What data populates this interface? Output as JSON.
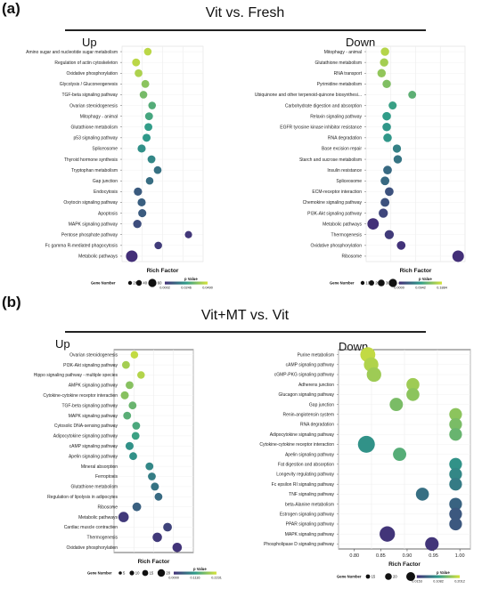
{
  "panel_a": {
    "letter": "(a)",
    "title": "Vit vs. Fresh",
    "up_label": "Up",
    "down_label": "Down"
  },
  "panel_b": {
    "letter": "(b)",
    "title": "Vit+MT vs. Vit",
    "up_label": "Up",
    "down_label": "Down"
  },
  "colors": {
    "low_p": "#d6e33a",
    "mid_p": "#2f9c8a",
    "high_p": "#432f78"
  },
  "chart_data": [
    {
      "type": "scatter",
      "panel": "(a) Up",
      "xlabel": "Rich Factor",
      "size_legend_title": "Gene Number",
      "size_legend_values": [
        20,
        40,
        60
      ],
      "color_legend_title": "p Value",
      "color_legend_ticks": [
        "0.0002",
        "0.0246",
        "0.0490"
      ],
      "xlim": [
        0.0,
        1.0
      ],
      "categories": [
        "Amino sugar and nucleotide sugar metabolism",
        "Regulation of actin cytoskeleton",
        "Oxidative phosphorylation",
        "Glycolysis / Gluconeogenesis",
        "TGF-beta signaling pathway",
        "Ovarian steroidogenesis",
        "Mitophagy - animal",
        "Glutathione metabolism",
        "p53 signaling pathway",
        "Spliceosome",
        "Thyroid hormone synthesis",
        "Tryptophan metabolism",
        "Gap junction",
        "Endocytosis",
        "Oxytocin signaling pathway",
        "Apoptosis",
        "MAPK signaling pathway",
        "Pentose phosphate pathway",
        "Fc gamma R-mediated phagocytosis",
        "Metabolic pathways"
      ],
      "x": [
        0.26,
        0.07,
        0.11,
        0.22,
        0.19,
        0.33,
        0.28,
        0.27,
        0.24,
        0.16,
        0.32,
        0.42,
        0.29,
        0.1,
        0.16,
        0.17,
        0.09,
        0.92,
        0.43,
        0.0
      ],
      "sizes": [
        8,
        10,
        9,
        10,
        8,
        8,
        10,
        10,
        11,
        12,
        10,
        9,
        8,
        13,
        12,
        12,
        14,
        6,
        8,
        60
      ],
      "pvalues": [
        0.045,
        0.045,
        0.043,
        0.038,
        0.035,
        0.03,
        0.028,
        0.025,
        0.024,
        0.022,
        0.02,
        0.015,
        0.014,
        0.01,
        0.011,
        0.01,
        0.007,
        0.002,
        0.003,
        0.0002
      ]
    },
    {
      "type": "scatter",
      "panel": "(a) Down",
      "xlabel": "Rich Factor",
      "size_legend_title": "Gene Number",
      "size_legend_values": [
        10,
        20,
        30,
        40
      ],
      "color_legend_title": "p Value",
      "color_legend_ticks": [
        "0.0000",
        "0.0942",
        "0.1884"
      ],
      "xlim": [
        0.0,
        1.0
      ],
      "categories": [
        "Mitophagy - animal",
        "Glutathione metabolism",
        "RNA transport",
        "Pyrimidine metabolism",
        "Ubiquinone and other terpenoid-quinone biosynthesi...",
        "Carbohydrate digestion and absorption",
        "Relaxin signaling pathway",
        "EGFR tyrosine kinase inhibitor resistance",
        "RNA degradation",
        "Base excision repair",
        "Starch and sucrose metabolism",
        "Insulin resistance",
        "Spliceosome",
        "ECM-receptor interaction",
        "Chemokine signaling pathway",
        "PI3K-Akt signaling pathway",
        "Metabolic pathways",
        "Thermogenesis",
        "Oxidative phosphorylation",
        "Ribosome"
      ],
      "x": [
        0.14,
        0.13,
        0.1,
        0.16,
        0.46,
        0.23,
        0.16,
        0.16,
        0.17,
        0.28,
        0.29,
        0.17,
        0.14,
        0.19,
        0.14,
        0.12,
        0.0,
        0.19,
        0.33,
        1.0
      ],
      "sizes": [
        10,
        10,
        10,
        10,
        7,
        8,
        11,
        11,
        11,
        9,
        10,
        12,
        12,
        12,
        13,
        16,
        40,
        16,
        12,
        42
      ],
      "pvalues": [
        0.17,
        0.16,
        0.15,
        0.14,
        0.12,
        0.1,
        0.095,
        0.09,
        0.09,
        0.07,
        0.06,
        0.05,
        0.05,
        0.03,
        0.03,
        0.02,
        0.002,
        0.01,
        0.003,
        0.0001
      ]
    },
    {
      "type": "scatter",
      "panel": "(b) Up",
      "xlabel": "Rich Factor",
      "size_legend_title": "Gene Number",
      "size_legend_values": [
        5,
        10,
        15,
        20
      ],
      "color_legend_title": "p Value",
      "color_legend_ticks": [
        "0.0000",
        "0.1116",
        "0.2231"
      ],
      "xlim": [
        0.0,
        1.0
      ],
      "categories": [
        "Ovarian steroidogenesis",
        "PI3K-Akt signaling pathway",
        "Hippo signaling pathway - multiple species",
        "AMPK signaling pathway",
        "Cytokine-cytokine receptor interaction",
        "TGF-beta signaling pathway",
        "MAPK signaling pathway",
        "Cytosolic DNA-sensing pathway",
        "Adipocytokine signaling pathway",
        "cAMP signaling pathway",
        "Apelin signaling pathway",
        "Mineral absorption",
        "Ferroptosis",
        "Glutathione metabolism",
        "Regulation of lipolysis in adipocytes",
        "Ribosome",
        "Metabolic pathways",
        "Cardiac muscle contraction",
        "Thermogenesis",
        "Oxidative phosphorylation"
      ],
      "x": [
        0.18,
        0.04,
        0.29,
        0.1,
        0.02,
        0.15,
        0.06,
        0.21,
        0.2,
        0.1,
        0.16,
        0.43,
        0.47,
        0.52,
        0.58,
        0.22,
        0.0,
        0.73,
        0.56,
        0.89
      ],
      "sizes": [
        5,
        6,
        5,
        6,
        7,
        6,
        6,
        6,
        6,
        7,
        6,
        6,
        6,
        7,
        6,
        10,
        20,
        10,
        14,
        14
      ],
      "pvalues": [
        0.21,
        0.19,
        0.2,
        0.17,
        0.17,
        0.15,
        0.14,
        0.13,
        0.12,
        0.1,
        0.1,
        0.09,
        0.08,
        0.07,
        0.06,
        0.05,
        0.01,
        0.02,
        0.01,
        0.005
      ]
    },
    {
      "type": "scatter",
      "panel": "(b) Down",
      "xlabel": "Rich Factor",
      "size_legend_title": "Gene Number",
      "size_legend_values": [
        15,
        20,
        30
      ],
      "color_legend_title": "p Value",
      "color_legend_ticks": [
        "0.0153",
        "0.1082",
        "0.2012"
      ],
      "xlim": [
        0.77,
        1.02
      ],
      "xticks": [
        "0.80",
        "0.85",
        "0.90",
        "0.95",
        "1.00"
      ],
      "categories": [
        "Purine metabolism",
        "cAMP signaling pathway",
        "cGMP-PKG signaling pathway",
        "Adherens junction",
        "Glucagon signaling pathway",
        "Gap junction",
        "Renin-angiotensin system",
        "RNA degradation",
        "Adipocytokine signaling pathway",
        "Cytokine-cytokine receptor interaction",
        "Apelin signaling pathway",
        "Fat digestion and absorption",
        "Longevity regulating pathway",
        "Fc epsilon RI signaling pathway",
        "TNF signaling pathway",
        "beta-Alanine metabolism",
        "Estrogen signaling pathway",
        "PPAR signaling pathway",
        "MAPK signaling pathway",
        "Phospholipase D signaling pathway"
      ],
      "x": [
        0.815,
        0.822,
        0.828,
        0.91,
        0.91,
        0.875,
        1.0,
        1.0,
        1.0,
        0.812,
        0.882,
        1.0,
        1.0,
        1.0,
        0.93,
        1.0,
        1.0,
        1.0,
        0.856,
        0.95
      ],
      "sizes": [
        20,
        18,
        18,
        12,
        12,
        13,
        11,
        11,
        11,
        30,
        13,
        11,
        11,
        11,
        12,
        11,
        11,
        11,
        22,
        14
      ],
      "pvalues": [
        0.19,
        0.18,
        0.17,
        0.17,
        0.16,
        0.15,
        0.16,
        0.15,
        0.14,
        0.1,
        0.13,
        0.1,
        0.09,
        0.08,
        0.07,
        0.06,
        0.05,
        0.05,
        0.02,
        0.02
      ]
    }
  ]
}
